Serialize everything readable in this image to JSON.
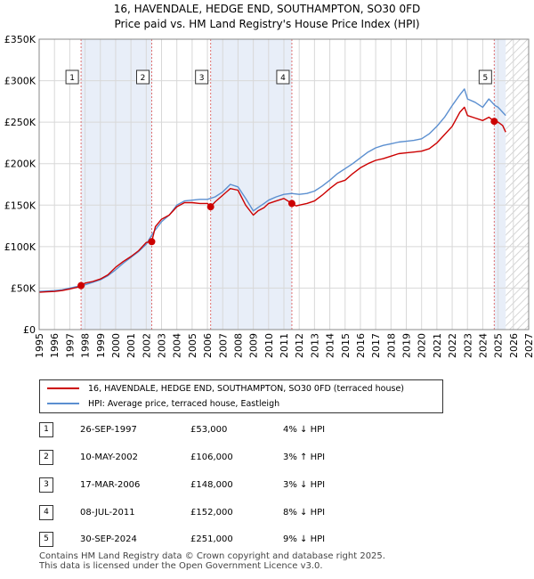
{
  "title_line1": "16, HAVENDALE, HEDGE END, SOUTHAMPTON, SO30 0FD",
  "title_line2": "Price paid vs. HM Land Registry's House Price Index (HPI)",
  "colors": {
    "price": "#cc0000",
    "hpi": "#5b8fd0",
    "shade": "#e8eef8",
    "marker_dash": "#e07070"
  },
  "chart_data": {
    "type": "line",
    "xlim": [
      1995,
      2027
    ],
    "ylim": [
      0,
      350000
    ],
    "y_ticks": [
      0,
      50000,
      100000,
      150000,
      200000,
      250000,
      300000,
      350000
    ],
    "y_tick_labels": [
      "£0",
      "£50K",
      "£100K",
      "£150K",
      "£200K",
      "£250K",
      "£300K",
      "£350K"
    ],
    "x_ticks": [
      1995,
      1996,
      1997,
      1998,
      1999,
      2000,
      2001,
      2002,
      2003,
      2004,
      2005,
      2006,
      2007,
      2008,
      2009,
      2010,
      2011,
      2012,
      2013,
      2014,
      2015,
      2016,
      2017,
      2018,
      2019,
      2020,
      2021,
      2022,
      2023,
      2024,
      2025,
      2026,
      2027
    ],
    "shaded_ranges": [
      [
        1997.74,
        2002.36
      ],
      [
        2006.21,
        2011.52
      ],
      [
        2024.75,
        2025.5
      ]
    ],
    "hatched_range": [
      2025.5,
      2027
    ],
    "series": [
      {
        "name": "16, HAVENDALE, HEDGE END, SOUTHAMPTON, SO30 0FD (terraced house)",
        "color": "#cc0000",
        "x": [
          1995.0,
          1995.5,
          1996.0,
          1996.5,
          1997.0,
          1997.5,
          1997.74,
          1998.0,
          1998.5,
          1999.0,
          1999.5,
          2000.0,
          2000.5,
          2001.0,
          2001.5,
          2002.0,
          2002.36,
          2002.6,
          2003.0,
          2003.5,
          2004.0,
          2004.5,
          2005.0,
          2005.5,
          2006.0,
          2006.21,
          2006.5,
          2007.0,
          2007.5,
          2008.0,
          2008.5,
          2009.0,
          2009.3,
          2009.7,
          2010.0,
          2010.5,
          2011.0,
          2011.52,
          2011.8,
          2012.0,
          2012.5,
          2013.0,
          2013.5,
          2014.0,
          2014.5,
          2015.0,
          2015.5,
          2016.0,
          2016.5,
          2017.0,
          2017.5,
          2018.0,
          2018.5,
          2019.0,
          2019.5,
          2020.0,
          2020.5,
          2021.0,
          2021.5,
          2022.0,
          2022.5,
          2022.8,
          2023.0,
          2023.5,
          2024.0,
          2024.4,
          2024.75,
          2025.0,
          2025.3,
          2025.5
        ],
        "values": [
          45000,
          45500,
          46000,
          47000,
          49000,
          51000,
          53000,
          56000,
          58000,
          61000,
          66000,
          75000,
          82000,
          88000,
          95000,
          105000,
          106000,
          124000,
          133000,
          138000,
          148000,
          153000,
          153000,
          152000,
          152000,
          148000,
          154000,
          162000,
          170000,
          168000,
          150000,
          138000,
          143000,
          147000,
          152000,
          155000,
          158000,
          152000,
          149000,
          150000,
          152000,
          155000,
          162000,
          170000,
          177000,
          180000,
          188000,
          195000,
          200000,
          204000,
          206000,
          209000,
          212000,
          213000,
          214000,
          215000,
          218000,
          225000,
          235000,
          245000,
          262000,
          268000,
          258000,
          255000,
          252000,
          256000,
          251000,
          250000,
          246000,
          238000
        ]
      },
      {
        "name": "HPI: Average price, terraced house, Eastleigh",
        "color": "#5b8fd0",
        "x": [
          1995.0,
          1995.5,
          1996.0,
          1996.5,
          1997.0,
          1997.5,
          1998.0,
          1998.5,
          1999.0,
          1999.5,
          2000.0,
          2000.5,
          2001.0,
          2001.5,
          2002.0,
          2002.5,
          2003.0,
          2003.5,
          2004.0,
          2004.5,
          2005.0,
          2005.5,
          2006.0,
          2006.5,
          2007.0,
          2007.5,
          2008.0,
          2008.5,
          2009.0,
          2009.3,
          2009.7,
          2010.0,
          2010.5,
          2011.0,
          2011.5,
          2012.0,
          2012.5,
          2013.0,
          2013.5,
          2014.0,
          2014.5,
          2015.0,
          2015.5,
          2016.0,
          2016.5,
          2017.0,
          2017.5,
          2018.0,
          2018.5,
          2019.0,
          2019.5,
          2020.0,
          2020.5,
          2021.0,
          2021.5,
          2022.0,
          2022.5,
          2022.8,
          2023.0,
          2023.5,
          2024.0,
          2024.4,
          2024.8,
          2025.0,
          2025.3,
          2025.5
        ],
        "values": [
          46000,
          46500,
          47000,
          48000,
          50000,
          52000,
          54000,
          57000,
          60000,
          65000,
          72000,
          80000,
          87000,
          94000,
          103000,
          118000,
          130000,
          138000,
          150000,
          155000,
          156000,
          157000,
          157000,
          160000,
          166000,
          175000,
          172000,
          158000,
          143000,
          147000,
          152000,
          156000,
          160000,
          163000,
          164000,
          163000,
          164000,
          167000,
          173000,
          180000,
          188000,
          194000,
          200000,
          207000,
          214000,
          219000,
          222000,
          224000,
          226000,
          227000,
          228000,
          230000,
          236000,
          245000,
          256000,
          270000,
          283000,
          290000,
          278000,
          274000,
          268000,
          278000,
          270000,
          268000,
          262000,
          258000
        ]
      }
    ],
    "sale_markers": [
      {
        "label": "1",
        "x": 1997.74,
        "value": 53000
      },
      {
        "label": "2",
        "x": 2002.36,
        "value": 106000
      },
      {
        "label": "3",
        "x": 2006.21,
        "value": 148000
      },
      {
        "label": "4",
        "x": 2011.52,
        "value": 152000
      },
      {
        "label": "5",
        "x": 2024.75,
        "value": 251000
      }
    ]
  },
  "legend": {
    "price_label": "16, HAVENDALE, HEDGE END, SOUTHAMPTON, SO30 0FD (terraced house)",
    "hpi_label": "HPI: Average price, terraced house, Eastleigh"
  },
  "sales": [
    {
      "num": "1",
      "date": "26-SEP-1997",
      "price": "£53,000",
      "hpi": "4% ↓ HPI"
    },
    {
      "num": "2",
      "date": "10-MAY-2002",
      "price": "£106,000",
      "hpi": "3% ↑ HPI"
    },
    {
      "num": "3",
      "date": "17-MAR-2006",
      "price": "£148,000",
      "hpi": "3% ↓ HPI"
    },
    {
      "num": "4",
      "date": "08-JUL-2011",
      "price": "£152,000",
      "hpi": "8% ↓ HPI"
    },
    {
      "num": "5",
      "date": "30-SEP-2024",
      "price": "£251,000",
      "hpi": "9% ↓ HPI"
    }
  ],
  "footer_line1": "Contains HM Land Registry data © Crown copyright and database right 2025.",
  "footer_line2": "This data is licensed under the Open Government Licence v3.0."
}
